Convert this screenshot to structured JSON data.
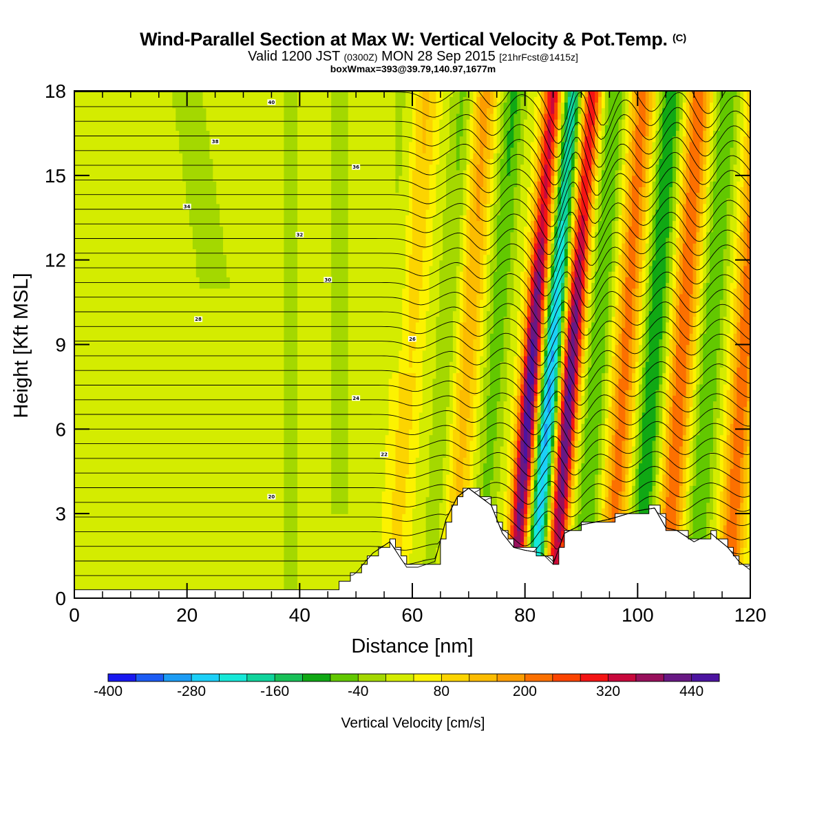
{
  "header": {
    "title": "Wind-Parallel Section at Max W: Vertical Velocity & Pot.Temp.",
    "title_mark": "(C)",
    "valid_prefix": "Valid 1200 JST",
    "valid_utc": "(0300Z)",
    "valid_date": "MON 28 Sep 2015",
    "forecast": "[21hrFcst@1415z]",
    "box_info": "boxWmax=393@39.79,140.97,1677m"
  },
  "chart_data": {
    "type": "heatmap",
    "title": "Wind-Parallel Section at Max W: Vertical Velocity & Pot.Temp.",
    "xlabel": "Distance [nm]",
    "ylabel": "Height [Kft MSL]",
    "xlim": [
      0,
      120
    ],
    "ylim": [
      0,
      18
    ],
    "x_ticks": [
      0,
      20,
      40,
      60,
      80,
      100,
      120
    ],
    "y_ticks": [
      0,
      3,
      6,
      9,
      12,
      15,
      18
    ],
    "colorbar": {
      "title": "Vertical Velocity [cm/s]",
      "min": -400,
      "max": 480,
      "step": 40,
      "tick_labels": [
        "-400",
        "-280",
        "-160",
        "-40",
        "80",
        "200",
        "320",
        "440"
      ],
      "colors": [
        "#1818f0",
        "#1c5cf4",
        "#1c9cf4",
        "#1cd0f8",
        "#16e8d8",
        "#10d49c",
        "#18c058",
        "#10a814",
        "#62c800",
        "#a4d800",
        "#d4ec00",
        "#fcf200",
        "#fcd400",
        "#fcbc00",
        "#fc9c00",
        "#fc7000",
        "#fc4400",
        "#f41414",
        "#c8083c",
        "#98105c",
        "#681884",
        "#4c14a0"
      ]
    },
    "wave_bands": [
      {
        "x_at_base": 56.5,
        "velocity": 100
      },
      {
        "x_at_base": 63,
        "velocity": -80
      },
      {
        "x_at_base": 67,
        "velocity": 150
      },
      {
        "x_at_base": 72,
        "velocity": -120
      },
      {
        "x_at_base": 78,
        "velocity": 400
      },
      {
        "x_at_base": 81.5,
        "velocity": -300
      },
      {
        "x_at_base": 85,
        "velocity": 380
      },
      {
        "x_at_base": 90,
        "velocity": -110
      },
      {
        "x_at_base": 95,
        "velocity": 190
      },
      {
        "x_at_base": 100,
        "velocity": -150
      },
      {
        "x_at_base": 105,
        "velocity": 210
      },
      {
        "x_at_base": 110,
        "velocity": -110
      },
      {
        "x_at_base": 116,
        "velocity": 200
      }
    ],
    "terrain": {
      "x": [
        0,
        46,
        50,
        53,
        56,
        59,
        61,
        64,
        66,
        68,
        70,
        72,
        74,
        76,
        78,
        80,
        83,
        85,
        87,
        90,
        95,
        100,
        103,
        105,
        107,
        110,
        113,
        116,
        118,
        120
      ],
      "height": [
        0.3,
        0.3,
        0.9,
        1.6,
        2.0,
        1.1,
        1.1,
        1.3,
        2.8,
        3.6,
        3.9,
        3.6,
        3.3,
        2.3,
        1.8,
        1.7,
        1.6,
        1.2,
        2.3,
        2.6,
        2.8,
        3.1,
        3.2,
        2.5,
        2.4,
        2.0,
        2.3,
        1.8,
        1.3,
        1.0
      ]
    },
    "isentropes": {
      "unit": "C",
      "labels": [
        "40",
        "38",
        "36",
        "34",
        "32",
        "30",
        "28",
        "26",
        "24",
        "22",
        "20"
      ],
      "values": [
        20,
        22,
        24,
        26,
        28,
        30,
        32,
        34,
        36,
        38,
        40
      ]
    }
  }
}
